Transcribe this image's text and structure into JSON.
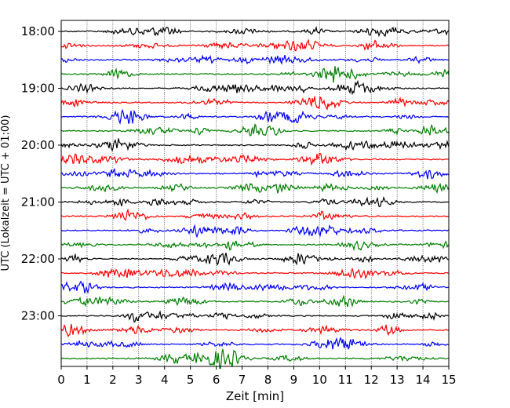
{
  "chart_data": {
    "type": "line",
    "title": "",
    "xlabel": "Zeit  [min]",
    "ylabel": "UTC (Lokalzeit = UTC + 01:00)",
    "xlim": [
      0,
      15
    ],
    "x_ticks": [
      0,
      1,
      2,
      3,
      4,
      5,
      6,
      7,
      8,
      9,
      10,
      11,
      12,
      13,
      14,
      15
    ],
    "y_ticks": [
      "18:00",
      "19:00",
      "20:00",
      "21:00",
      "22:00",
      "23:00"
    ],
    "grid": "vertical dotted",
    "legend": "none",
    "trace_interval_min": 15,
    "start": "18:00",
    "colors": [
      "#000000",
      "#ff0000",
      "#0000ff",
      "#007f00"
    ],
    "series": [
      {
        "start": "18:00",
        "color": "#000000"
      },
      {
        "start": "18:15",
        "color": "#ff0000"
      },
      {
        "start": "18:30",
        "color": "#0000ff"
      },
      {
        "start": "18:45",
        "color": "#007f00"
      },
      {
        "start": "19:00",
        "color": "#000000"
      },
      {
        "start": "19:15",
        "color": "#ff0000"
      },
      {
        "start": "19:30",
        "color": "#0000ff"
      },
      {
        "start": "19:45",
        "color": "#007f00"
      },
      {
        "start": "20:00",
        "color": "#000000"
      },
      {
        "start": "20:15",
        "color": "#ff0000"
      },
      {
        "start": "20:30",
        "color": "#0000ff"
      },
      {
        "start": "20:45",
        "color": "#007f00"
      },
      {
        "start": "21:00",
        "color": "#000000"
      },
      {
        "start": "21:15",
        "color": "#ff0000"
      },
      {
        "start": "21:30",
        "color": "#0000ff"
      },
      {
        "start": "21:45",
        "color": "#007f00"
      },
      {
        "start": "22:00",
        "color": "#000000"
      },
      {
        "start": "22:15",
        "color": "#ff0000"
      },
      {
        "start": "22:30",
        "color": "#0000ff"
      },
      {
        "start": "22:45",
        "color": "#007f00"
      },
      {
        "start": "23:00",
        "color": "#000000"
      },
      {
        "start": "23:15",
        "color": "#ff0000"
      },
      {
        "start": "23:30",
        "color": "#0000ff"
      },
      {
        "start": "23:45",
        "color": "#007f00"
      }
    ]
  }
}
